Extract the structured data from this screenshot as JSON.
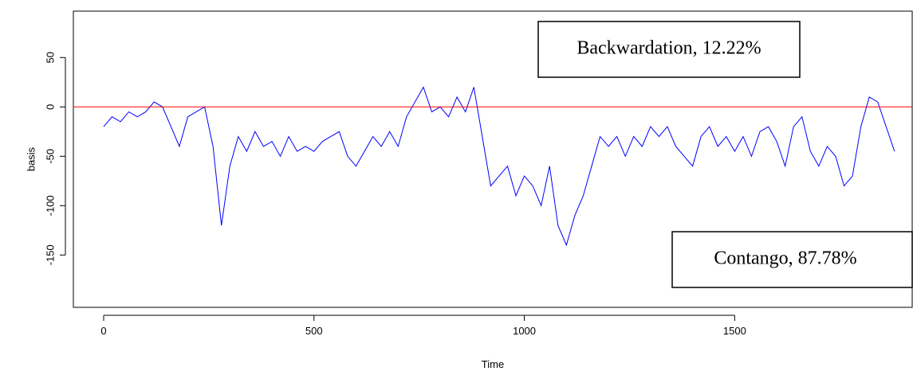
{
  "chart_data": {
    "type": "line",
    "xlabel": "Time",
    "ylabel": "basis",
    "x": [
      0,
      20,
      40,
      60,
      80,
      100,
      120,
      140,
      160,
      180,
      200,
      220,
      240,
      260,
      280,
      300,
      320,
      340,
      360,
      380,
      400,
      420,
      440,
      460,
      480,
      500,
      520,
      540,
      560,
      580,
      600,
      620,
      640,
      660,
      680,
      700,
      720,
      740,
      760,
      780,
      800,
      820,
      840,
      860,
      880,
      900,
      920,
      940,
      960,
      980,
      1000,
      1020,
      1040,
      1060,
      1080,
      1100,
      1120,
      1140,
      1160,
      1180,
      1200,
      1220,
      1240,
      1260,
      1280,
      1300,
      1320,
      1340,
      1360,
      1380,
      1400,
      1420,
      1440,
      1460,
      1480,
      1500,
      1520,
      1540,
      1560,
      1580,
      1600,
      1620,
      1640,
      1660,
      1680,
      1700,
      1720,
      1740,
      1760,
      1780,
      1800,
      1820,
      1840,
      1860,
      1880
    ],
    "series": [
      {
        "name": "basis",
        "color": "#0000ff",
        "values": [
          -20,
          -10,
          -15,
          -5,
          -10,
          -5,
          5,
          0,
          -20,
          -40,
          -10,
          -5,
          0,
          -40,
          -120,
          -60,
          -30,
          -45,
          -25,
          -40,
          -35,
          -50,
          -30,
          -45,
          -40,
          -45,
          -35,
          -30,
          -25,
          -50,
          -60,
          -45,
          -30,
          -40,
          -25,
          -40,
          -10,
          5,
          20,
          -5,
          0,
          -10,
          10,
          -5,
          20,
          -30,
          -80,
          -70,
          -60,
          -90,
          -70,
          -80,
          -100,
          -60,
          -120,
          -140,
          -110,
          -90,
          -60,
          -30,
          -40,
          -30,
          -50,
          -30,
          -40,
          -20,
          -30,
          -20,
          -40,
          -50,
          -60,
          -30,
          -20,
          -40,
          -30,
          -45,
          -30,
          -50,
          -25,
          -20,
          -35,
          -60,
          -20,
          -10,
          -45,
          -60,
          -40,
          -50,
          -80,
          -70,
          -20,
          10,
          5,
          -20,
          -45
        ]
      }
    ],
    "reference_line": {
      "y": 0,
      "color": "#ff0000"
    },
    "annotations": [
      "Backwardation, 12.22%",
      "Contango, 87.78%"
    ],
    "xlim": [
      -72,
      1922
    ],
    "xticks": [
      0,
      500,
      1000,
      1500
    ],
    "ylim": [
      -203,
      97
    ],
    "yticks": [
      -150,
      -100,
      -50,
      0,
      50
    ]
  }
}
